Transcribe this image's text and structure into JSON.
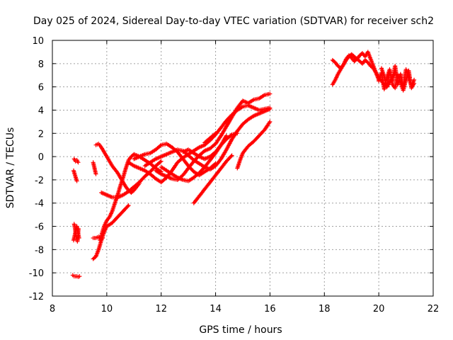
{
  "chart_data": {
    "type": "scatter",
    "title": "Day 025 of 2024, Sidereal Day-to-day VTEC variation (SDTVAR) for receiver sch2",
    "xlabel": "GPS time / hours",
    "ylabel": "SDTVAR / TECUs",
    "xlim": [
      8,
      22
    ],
    "ylim": [
      -12,
      10
    ],
    "xticks": [
      "8",
      "10",
      "12",
      "14",
      "16",
      "18",
      "20",
      "22"
    ],
    "yticks": [
      "-12",
      "-10",
      "-8",
      "-6",
      "-4",
      "-2",
      "0",
      "2",
      "4",
      "6",
      "8",
      "10"
    ],
    "grid": true,
    "marker": "plus",
    "color": "#ff0000",
    "series": [
      {
        "x": [
          8.75,
          8.8,
          8.85,
          8.9,
          8.95,
          9.0
        ],
        "y": [
          -10.2,
          -10.3,
          -10.3,
          -10.3,
          -10.35,
          -10.3
        ]
      },
      {
        "x": [
          8.78,
          8.82,
          8.86,
          8.9,
          8.94,
          8.98
        ],
        "y": [
          -7.2,
          -6.8,
          -6.4,
          -6.0,
          -6.5,
          -7.0
        ]
      },
      {
        "x": [
          8.8,
          8.84,
          8.88,
          8.92,
          8.96
        ],
        "y": [
          -5.8,
          -6.3,
          -6.9,
          -7.3,
          -6.2
        ]
      },
      {
        "x": [
          8.78,
          8.82,
          8.86,
          8.9
        ],
        "y": [
          -1.2,
          -1.5,
          -1.8,
          -2.1
        ]
      },
      {
        "x": [
          8.8,
          8.85,
          8.9,
          8.95
        ],
        "y": [
          -0.2,
          -0.4,
          -0.3,
          -0.5
        ]
      },
      {
        "x": [
          9.5,
          9.6,
          9.7,
          9.8,
          9.9,
          10.0,
          10.2,
          10.4,
          10.6,
          10.8
        ],
        "y": [
          -8.8,
          -8.6,
          -8.0,
          -7.2,
          -6.5,
          -6.0,
          -5.7,
          -5.2,
          -4.7,
          -4.2
        ]
      },
      {
        "x": [
          9.5,
          9.6,
          9.7,
          9.8,
          9.85
        ],
        "y": [
          -7.0,
          -7.0,
          -6.9,
          -7.1,
          -7.0
        ]
      },
      {
        "x": [
          9.75,
          9.8,
          9.9,
          10.0,
          10.1,
          10.2,
          10.3,
          10.4,
          10.5,
          10.6,
          10.7,
          10.8,
          10.9,
          11.0,
          11.2,
          11.4,
          11.6,
          11.8,
          12.0
        ],
        "y": [
          -7.2,
          -6.8,
          -6.0,
          -5.5,
          -5.2,
          -4.7,
          -4.0,
          -3.3,
          -2.5,
          -1.8,
          -1.0,
          -0.3,
          0.0,
          0.2,
          0.0,
          -0.3,
          -0.6,
          -1.0,
          -1.3
        ]
      },
      {
        "x": [
          9.6,
          9.7,
          9.8,
          9.9,
          10.0,
          10.1,
          10.2,
          10.3,
          10.4,
          10.5,
          10.6,
          10.7,
          10.8,
          10.9,
          11.0,
          11.1,
          11.2
        ],
        "y": [
          1.0,
          1.1,
          0.8,
          0.4,
          0.0,
          -0.4,
          -0.8,
          -1.1,
          -1.4,
          -1.8,
          -2.2,
          -2.6,
          -2.9,
          -3.1,
          -2.9,
          -2.6,
          -2.3
        ]
      },
      {
        "x": [
          9.5,
          9.55,
          9.6
        ],
        "y": [
          -0.5,
          -1.0,
          -1.5
        ]
      },
      {
        "x": [
          9.8,
          10.0,
          10.2,
          10.4,
          10.6,
          10.8,
          11.0,
          11.2,
          11.4,
          11.6,
          11.8,
          12.0
        ],
        "y": [
          -3.1,
          -3.3,
          -3.5,
          -3.5,
          -3.3,
          -3.0,
          -2.6,
          -2.2,
          -1.7,
          -1.3,
          -0.8,
          -0.4
        ]
      },
      {
        "x": [
          10.8,
          11.0,
          11.2,
          11.4,
          11.6,
          11.8,
          12.0,
          12.2,
          12.4,
          12.6,
          12.8,
          13.0,
          13.2,
          13.4,
          13.6,
          13.8,
          14.0,
          14.2,
          14.4,
          14.6,
          14.8,
          15.0,
          15.2,
          15.4,
          15.6,
          15.8,
          16.0
        ],
        "y": [
          -0.5,
          -0.8,
          -1.0,
          -1.2,
          -1.5,
          -1.9,
          -2.2,
          -1.8,
          -1.2,
          -0.5,
          -0.1,
          0.2,
          0.5,
          0.8,
          1.0,
          1.4,
          1.9,
          2.5,
          3.1,
          3.6,
          4.0,
          4.3,
          4.4,
          4.2,
          4.0,
          4.1,
          4.2
        ]
      },
      {
        "x": [
          11.0,
          11.2,
          11.4,
          11.6,
          11.8,
          12.0,
          12.2,
          12.4,
          12.6,
          12.8,
          13.0,
          13.2,
          13.4,
          13.6,
          13.8,
          14.0
        ],
        "y": [
          -0.2,
          0.0,
          0.2,
          0.3,
          0.6,
          1.0,
          1.1,
          0.8,
          0.4,
          -0.2,
          -0.8,
          -1.3,
          -1.6,
          -1.3,
          -1.0,
          -0.6
        ]
      },
      {
        "x": [
          11.4,
          11.6,
          11.8,
          12.0,
          12.2,
          12.4,
          12.6,
          12.8,
          13.0,
          13.2,
          13.4,
          13.6,
          13.8,
          14.0,
          14.2,
          14.4,
          14.6,
          14.8,
          15.0,
          15.2,
          15.4,
          15.6,
          15.8,
          16.0
        ],
        "y": [
          -0.8,
          -0.5,
          -0.2,
          0.0,
          0.2,
          0.4,
          0.6,
          0.5,
          0.1,
          -0.3,
          -0.6,
          -0.9,
          -1.1,
          -0.8,
          -0.2,
          0.6,
          1.5,
          2.2,
          2.8,
          3.2,
          3.5,
          3.7,
          3.9,
          4.1
        ]
      },
      {
        "x": [
          11.8,
          12.0,
          12.2,
          12.4,
          12.6,
          12.8,
          13.0,
          13.2,
          13.4,
          13.6,
          13.8,
          14.0,
          14.2,
          14.4,
          14.6,
          14.8,
          15.0,
          15.2,
          15.4,
          15.6,
          15.8,
          16.0
        ],
        "y": [
          -1.2,
          -1.5,
          -1.7,
          -1.9,
          -2.0,
          -1.6,
          -1.0,
          -0.4,
          0.1,
          0.5,
          0.7,
          1.1,
          1.8,
          2.6,
          3.4,
          4.2,
          4.8,
          4.6,
          4.9,
          5.0,
          5.3,
          5.4
        ]
      },
      {
        "x": [
          12.0,
          12.2,
          12.4,
          12.6,
          12.8,
          13.0,
          13.2,
          13.4,
          13.6,
          13.8,
          14.0,
          14.2,
          14.4
        ],
        "y": [
          -0.9,
          -1.2,
          -1.5,
          -1.8,
          -2.0,
          -2.1,
          -1.8,
          -1.4,
          -0.9,
          -0.3,
          0.3,
          1.0,
          1.8
        ]
      },
      {
        "x": [
          13.2,
          13.4,
          13.6,
          13.8,
          14.0,
          14.2,
          14.4,
          14.6
        ],
        "y": [
          -4.0,
          -3.4,
          -2.8,
          -2.2,
          -1.6,
          -1.0,
          -0.4,
          0.1
        ]
      },
      {
        "x": [
          12.8,
          13.0,
          13.2,
          13.4,
          13.6,
          13.8,
          14.0,
          14.2,
          14.4,
          14.6,
          14.8
        ],
        "y": [
          0.4,
          0.6,
          0.3,
          0.0,
          -0.2,
          0.0,
          0.4,
          1.0,
          1.5,
          1.9,
          2.0
        ]
      },
      {
        "x": [
          13.6,
          13.8,
          14.0
        ],
        "y": [
          1.2,
          1.6,
          2.0
        ]
      },
      {
        "x": [
          14.8,
          14.9,
          15.0,
          15.2,
          15.4,
          15.6,
          15.8,
          16.0
        ],
        "y": [
          -1.0,
          -0.3,
          0.3,
          0.9,
          1.3,
          1.8,
          2.3,
          3.0
        ]
      },
      {
        "x": [
          18.3,
          18.4,
          18.5,
          18.6,
          18.7,
          18.8,
          18.9,
          19.0,
          19.1,
          19.2,
          19.3,
          19.4,
          19.5,
          19.6,
          19.7,
          19.8,
          19.9,
          20.0,
          20.1,
          20.2,
          20.3,
          20.4,
          20.5,
          20.6
        ],
        "y": [
          6.2,
          6.6,
          7.1,
          7.5,
          7.9,
          8.3,
          8.6,
          8.8,
          8.6,
          8.4,
          8.2,
          8.0,
          8.3,
          8.1,
          7.8,
          7.6,
          7.2,
          6.8,
          6.5,
          6.2,
          6.0,
          6.4,
          6.8,
          7.2
        ]
      },
      {
        "x": [
          18.3,
          18.4,
          18.5,
          18.6,
          18.7,
          18.8,
          18.9,
          19.0,
          19.1,
          19.2,
          19.3,
          19.4,
          19.5,
          19.6,
          19.7,
          19.8,
          19.9,
          20.0
        ],
        "y": [
          8.3,
          8.1,
          7.8,
          7.6,
          7.9,
          8.4,
          8.7,
          8.5,
          8.2,
          8.4,
          8.7,
          8.9,
          8.6,
          9.0,
          8.4,
          7.8,
          7.2,
          6.6
        ]
      },
      {
        "x": [
          20.0,
          20.1,
          20.2,
          20.3,
          20.4,
          20.5,
          20.6,
          20.7,
          20.8,
          20.9,
          21.0,
          21.1,
          21.2,
          21.3
        ],
        "y": [
          6.5,
          7.2,
          5.8,
          6.8,
          7.5,
          6.2,
          5.9,
          7.0,
          6.4,
          5.7,
          6.6,
          7.4,
          5.9,
          6.3
        ]
      },
      {
        "x": [
          20.1,
          20.2,
          20.3,
          20.4,
          20.5,
          20.6,
          20.7,
          20.8,
          20.9,
          21.0,
          21.1,
          21.2,
          21.3
        ],
        "y": [
          7.6,
          6.9,
          6.0,
          7.3,
          6.5,
          7.8,
          6.2,
          7.1,
          6.0,
          7.5,
          6.8,
          6.1,
          6.6
        ]
      }
    ]
  }
}
